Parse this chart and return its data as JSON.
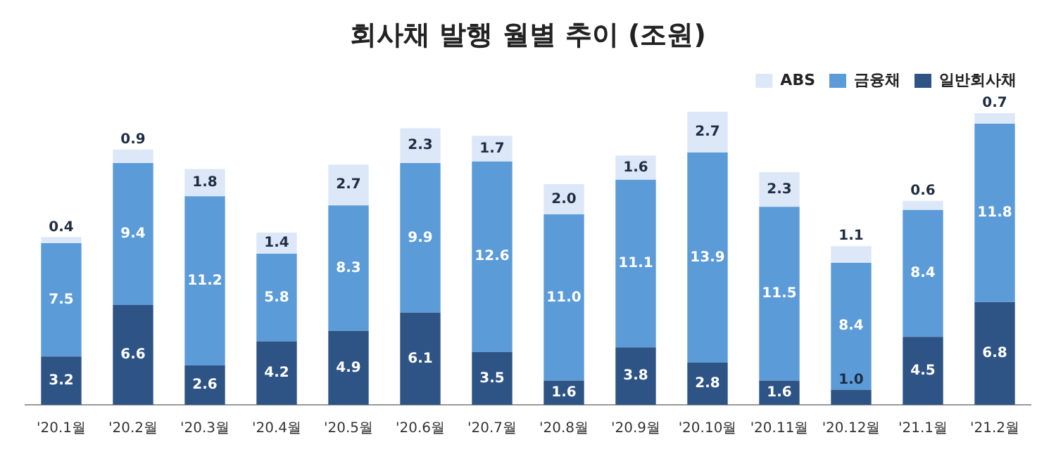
{
  "chart_data": {
    "type": "bar",
    "title": "회사채 발행 월별 추이 (조원)",
    "stacked": true,
    "legend": "top right",
    "grid": false,
    "tick_labels": "x",
    "categories": [
      "'20.1월",
      "'20.2월",
      "'20.3월",
      "'20.4월",
      "'20.5월",
      "'20.6월",
      "'20.7월",
      "'20.8월",
      "'20.9월",
      "'20.10월",
      "'20.11월",
      "'20.12월",
      "'21.1월",
      "'21.2월"
    ],
    "series": [
      {
        "name": "일반회사채",
        "color": "#2e5385",
        "values": [
          3.2,
          6.6,
          2.6,
          4.2,
          4.9,
          6.1,
          3.5,
          1.6,
          3.8,
          2.8,
          1.6,
          1.0,
          4.5,
          6.8
        ],
        "value_labels": [
          "3.2",
          "6.6",
          "2.6",
          "4.2",
          "4.9",
          "6.1",
          "3.5",
          "1.6",
          "3.8",
          "2.8",
          "1.6",
          "1.0",
          "4.5",
          "6.8"
        ]
      },
      {
        "name": "금융채",
        "color": "#5b9bd8",
        "values": [
          7.5,
          9.4,
          11.2,
          5.8,
          8.3,
          9.9,
          12.6,
          11.0,
          11.1,
          13.9,
          11.5,
          8.4,
          8.4,
          11.8
        ],
        "value_labels": [
          "7.5",
          "9.4",
          "11.2",
          "5.8",
          "8.3",
          "9.9",
          "12.6",
          "11.0",
          "11.1",
          "13.9",
          "11.5",
          "8.4",
          "8.4",
          "11.8"
        ]
      },
      {
        "name": "ABS",
        "color": "#dce8f8",
        "values": [
          0.4,
          0.9,
          1.8,
          1.4,
          2.7,
          2.3,
          1.7,
          2.0,
          1.6,
          2.7,
          2.3,
          1.1,
          0.6,
          0.7
        ],
        "value_labels": [
          "0.4",
          "0.9",
          "1.8",
          "1.4",
          "2.7",
          "2.3",
          "1.7",
          "2.0",
          "1.6",
          "2.7",
          "2.3",
          "1.1",
          "0.6",
          "0.7"
        ]
      }
    ]
  }
}
